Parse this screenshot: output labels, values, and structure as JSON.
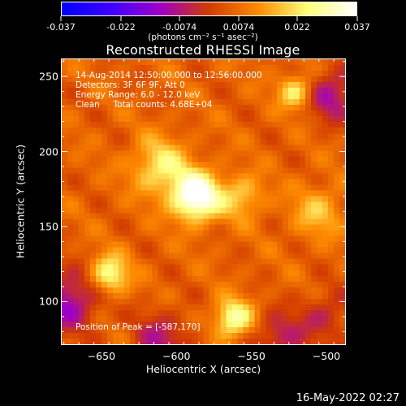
{
  "colorbar": {
    "tick_labels": [
      "-0.037",
      "-0.022",
      "-0.0074",
      "0.0074",
      "0.022",
      "0.037"
    ],
    "tick_values": [
      -0.037,
      -0.022,
      -0.0074,
      0.0074,
      0.022,
      0.037
    ],
    "range": [
      -0.037,
      0.037
    ],
    "colormap": [
      "#0000ff",
      "#3f00ff",
      "#a000c8",
      "#d23c00",
      "#ff8c00",
      "#ffff7a",
      "#ffffff"
    ],
    "units": "(photons cm⁻² s⁻¹ asec⁻²)"
  },
  "chart_data": {
    "type": "heatmap",
    "title": "Reconstructed RHESSI Image",
    "xlabel": "Heliocentric X (arcsec)",
    "ylabel": "Heliocentric Y (arcsec)",
    "xlim": [
      -677,
      -487
    ],
    "ylim": [
      71,
      262
    ],
    "x_ticks": [
      -650,
      -600,
      -550,
      -500
    ],
    "x_tick_labels": [
      "−650",
      "−600",
      "−550",
      "−500"
    ],
    "y_ticks": [
      100,
      150,
      200,
      250
    ],
    "y_tick_labels": [
      "100",
      "150",
      "200",
      "250"
    ],
    "peak": [
      -587,
      170
    ],
    "sources": [
      {
        "x": -587,
        "y": 170,
        "amplitude": 0.037,
        "width": 11
      },
      {
        "x": -611,
        "y": 190,
        "amplitude": 0.018,
        "width": 13
      },
      {
        "x": -645,
        "y": 118,
        "amplitude": 0.022,
        "width": 9
      },
      {
        "x": -562,
        "y": 88,
        "amplitude": 0.024,
        "width": 9
      },
      {
        "x": -520,
        "y": 240,
        "amplitude": 0.019,
        "width": 8
      },
      {
        "x": -556,
        "y": 170,
        "amplitude": 0.014,
        "width": 10
      },
      {
        "x": -505,
        "y": 160,
        "amplitude": 0.012,
        "width": 12
      }
    ],
    "background": 0.006,
    "negative_regions": [
      {
        "x": -672,
        "y": 100,
        "amplitude": -0.018,
        "width": 14
      },
      {
        "x": -610,
        "y": 74,
        "amplitude": -0.012,
        "width": 14
      },
      {
        "x": -532,
        "y": 75,
        "amplitude": -0.013,
        "width": 12
      },
      {
        "x": -500,
        "y": 90,
        "amplitude": -0.01,
        "width": 12
      },
      {
        "x": -496,
        "y": 238,
        "amplitude": -0.016,
        "width": 12
      }
    ]
  },
  "info": {
    "line1": "14-Aug-2014 12:50:00.000 to 12:56:00.000",
    "line2": "Detectors: 3F 6F 9F, Att 0",
    "line3": "Energy Range: 6.0 - 12.0 keV",
    "line4": "Clean     Total counts: 4.68E+04",
    "peak_label": "Position of Peak = [-587,170]"
  },
  "timestamp": "16-May-2022 02:27"
}
